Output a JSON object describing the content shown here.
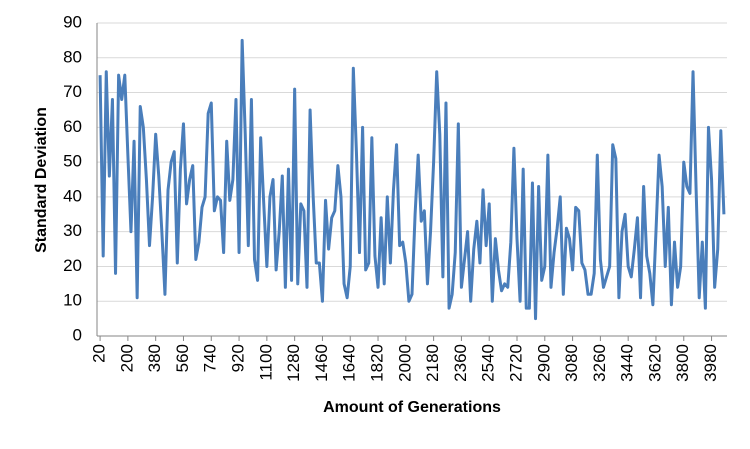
{
  "chart_data": {
    "type": "line",
    "xlabel": "Amount of Generations",
    "ylabel": "Standard Deviation",
    "x": [
      20,
      40,
      60,
      80,
      100,
      120,
      140,
      160,
      180,
      200,
      220,
      240,
      260,
      280,
      300,
      320,
      340,
      360,
      380,
      400,
      420,
      440,
      460,
      480,
      500,
      520,
      540,
      560,
      580,
      600,
      620,
      640,
      660,
      680,
      700,
      720,
      740,
      760,
      780,
      800,
      820,
      840,
      860,
      880,
      900,
      920,
      940,
      960,
      980,
      1000,
      1020,
      1040,
      1060,
      1080,
      1100,
      1120,
      1140,
      1160,
      1180,
      1200,
      1220,
      1240,
      1260,
      1280,
      1300,
      1320,
      1340,
      1360,
      1380,
      1400,
      1420,
      1440,
      1460,
      1480,
      1500,
      1520,
      1540,
      1560,
      1580,
      1600,
      1620,
      1640,
      1660,
      1680,
      1700,
      1720,
      1740,
      1760,
      1780,
      1800,
      1820,
      1840,
      1860,
      1880,
      1900,
      1920,
      1940,
      1960,
      1980,
      2000,
      2020,
      2040,
      2060,
      2080,
      2100,
      2120,
      2140,
      2160,
      2180,
      2200,
      2220,
      2240,
      2260,
      2280,
      2300,
      2320,
      2340,
      2360,
      2380,
      2400,
      2420,
      2440,
      2460,
      2480,
      2500,
      2520,
      2540,
      2560,
      2580,
      2600,
      2620,
      2640,
      2660,
      2680,
      2700,
      2720,
      2740,
      2760,
      2780,
      2800,
      2820,
      2840,
      2860,
      2880,
      2900,
      2920,
      2940,
      2960,
      2980,
      3000,
      3020,
      3040,
      3060,
      3080,
      3100,
      3120,
      3140,
      3160,
      3180,
      3200,
      3220,
      3240,
      3260,
      3280,
      3300,
      3320,
      3340,
      3360,
      3380,
      3400,
      3420,
      3440,
      3460,
      3480,
      3500,
      3520,
      3540,
      3560,
      3580,
      3600,
      3620,
      3640,
      3660,
      3680,
      3700,
      3720,
      3740,
      3760,
      3780,
      3800,
      3820,
      3840,
      3860,
      3880,
      3900,
      3920,
      3940,
      3960,
      3980,
      4000,
      4020,
      4040,
      4060
    ],
    "series": [
      {
        "name": "Standard Deviation",
        "color": "#4a7ebb",
        "values": [
          75,
          23,
          76,
          46,
          68,
          18,
          75,
          68,
          75,
          52,
          30,
          56,
          11,
          66,
          60,
          45,
          26,
          40,
          58,
          46,
          30,
          12,
          42,
          50,
          53,
          21,
          48,
          61,
          38,
          45,
          49,
          22,
          27,
          37,
          40,
          64,
          67,
          36,
          40,
          39,
          24,
          56,
          39,
          45,
          68,
          24,
          85,
          58,
          26,
          68,
          22,
          16,
          57,
          38,
          20,
          40,
          45,
          19,
          30,
          46,
          14,
          48,
          16,
          71,
          15,
          38,
          36,
          14,
          65,
          40,
          21,
          21,
          10,
          39,
          25,
          34,
          36,
          49,
          40,
          15,
          11,
          20,
          77,
          53,
          24,
          60,
          19,
          21,
          57,
          23,
          14,
          34,
          15,
          40,
          21,
          42,
          55,
          26,
          27,
          21,
          10,
          12,
          35,
          52,
          33,
          36,
          15,
          30,
          50,
          76,
          58,
          17,
          67,
          8,
          12,
          24,
          61,
          14,
          22,
          30,
          10,
          25,
          33,
          21,
          42,
          26,
          38,
          10,
          28,
          19,
          13,
          15,
          14,
          27,
          54,
          28,
          10,
          48,
          8,
          8,
          44,
          5,
          43,
          16,
          20,
          52,
          14,
          24,
          31,
          40,
          12,
          31,
          28,
          19,
          37,
          36,
          21,
          19,
          12,
          12,
          18,
          52,
          22,
          14,
          17,
          20,
          55,
          51,
          11,
          30,
          35,
          20,
          17,
          25,
          34,
          11,
          43,
          23,
          18,
          9,
          30,
          52,
          43,
          20,
          37,
          9,
          27,
          14,
          20,
          50,
          43,
          41,
          76,
          42,
          11,
          27,
          8,
          60,
          45,
          14,
          25,
          59,
          35
        ]
      }
    ],
    "xlim": [
      0,
      4080
    ],
    "xticks": [
      20,
      200,
      380,
      560,
      740,
      920,
      1100,
      1280,
      1460,
      1640,
      1820,
      2000,
      2180,
      2360,
      2540,
      2720,
      2900,
      3080,
      3260,
      3440,
      3620,
      3800,
      3980
    ],
    "ylim": [
      0,
      90
    ],
    "yticks": [
      0,
      10,
      20,
      30,
      40,
      50,
      60,
      70,
      80,
      90
    ],
    "grid": true
  }
}
